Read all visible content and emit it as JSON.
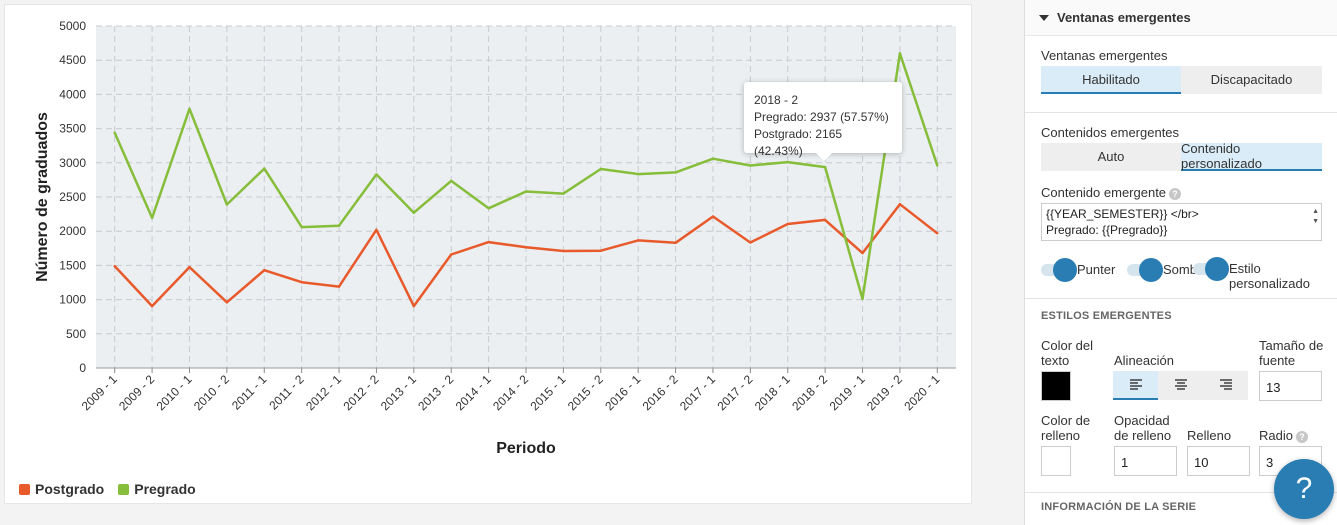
{
  "chart_data": {
    "type": "line",
    "xlabel": "Periodo",
    "ylabel": "Número de graduados",
    "ylim": [
      0,
      5000
    ],
    "yticks": [
      0,
      500,
      1000,
      1500,
      2000,
      2500,
      3000,
      3500,
      4000,
      4500,
      5000
    ],
    "grid": true,
    "legend_position": "bottom-left",
    "categories": [
      "2009 - 1",
      "2009 - 2",
      "2010 - 1",
      "2010 - 2",
      "2011 - 1",
      "2011 - 2",
      "2012 - 1",
      "2012 - 2",
      "2013 - 1",
      "2013 - 2",
      "2014 - 1",
      "2014 - 2",
      "2015 - 1",
      "2015 - 2",
      "2016 - 1",
      "2016 - 2",
      "2017 - 1",
      "2017 - 2",
      "2018 - 1",
      "2018 - 2",
      "2019 - 1",
      "2019 - 2",
      "2020 - 1"
    ],
    "series": [
      {
        "name": "Postgrado",
        "color": "#e8592b",
        "values": [
          1490,
          905,
          1475,
          960,
          1430,
          1255,
          1190,
          2020,
          905,
          1660,
          1840,
          1765,
          1710,
          1715,
          1865,
          1830,
          2215,
          1835,
          2105,
          2165,
          1680,
          2395,
          1970
        ]
      },
      {
        "name": "Pregrado",
        "color": "#86bd3a",
        "values": [
          3440,
          2195,
          3790,
          2390,
          2915,
          2060,
          2080,
          2830,
          2270,
          2735,
          2335,
          2580,
          2550,
          2910,
          2835,
          2860,
          3060,
          2960,
          3010,
          2937,
          1010,
          4600,
          2960
        ]
      }
    ]
  },
  "tooltip": {
    "period": "2018 - 2",
    "line1": "Pregrado: 2937 (57.57%)",
    "line2": "Postgrado: 2165 (42.43%)"
  },
  "panel": {
    "section_title": "Ventanas emergentes",
    "popups_label": "Ventanas emergentes",
    "popups_options": [
      "Habilitado",
      "Discapacitado"
    ],
    "popups_selected": "Habilitado",
    "contents_label": "Contenidos emergentes",
    "contents_options": [
      "Auto",
      "Contenido personalizado"
    ],
    "contents_selected": "Contenido personalizado",
    "content_label": "Contenido emergente",
    "content_value": "{{YEAR_SEMESTER}} </br>\nPregrado: {{Pregrado}}",
    "toggles": [
      "Punter",
      "Sombr",
      "Estilo personalizado"
    ],
    "styles_heading": "ESTILOS EMERGENTES",
    "text_color_label": "Color del texto",
    "text_color": "#000000",
    "alignment_label": "Alineación",
    "font_size_label": "Tamaño de fuente",
    "font_size": "13",
    "fill_color_label": "Color de relleno",
    "fill_color": "#ffffff",
    "fill_opacity_label": "Opacidad de relleno",
    "fill_opacity": "1",
    "padding_label": "Relleno",
    "padding": "10",
    "radius_label": "Radio",
    "radius": "3",
    "series_info_heading": "INFORMACIÓN DE LA SERIE"
  },
  "help_button": "?"
}
